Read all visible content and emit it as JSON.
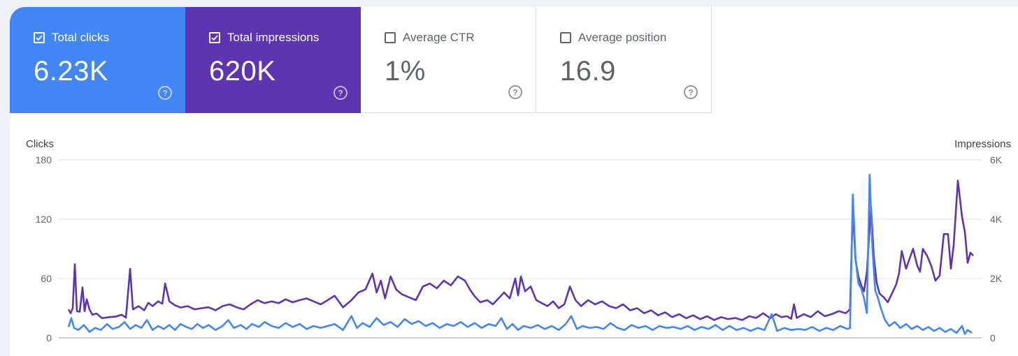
{
  "metrics": [
    {
      "label": "Total clicks",
      "value": "6.23K",
      "checked": true
    },
    {
      "label": "Total impressions",
      "value": "620K",
      "checked": true
    },
    {
      "label": "Average CTR",
      "value": "1%",
      "checked": false
    },
    {
      "label": "Average position",
      "value": "16.9",
      "checked": false
    }
  ],
  "colors": {
    "clicks": "#4285f4",
    "impressions": "#5e35b1",
    "grid": "#e0e0e0",
    "axis_text": "#5f6368"
  },
  "chart_data": {
    "type": "line",
    "title": "",
    "y_left": {
      "label": "Clicks",
      "ticks": [
        "180",
        "120",
        "60",
        "0"
      ],
      "range": [
        0,
        180
      ]
    },
    "y_right": {
      "label": "Impressions",
      "ticks": [
        "6K",
        "4K",
        "2K",
        "0"
      ],
      "range": [
        0,
        6000
      ]
    },
    "series": [
      {
        "name": "Clicks",
        "axis": "left",
        "points": [
          [
            0,
            11
          ],
          [
            4,
            20
          ],
          [
            8,
            10
          ],
          [
            14,
            8
          ],
          [
            22,
            13
          ],
          [
            30,
            6
          ],
          [
            38,
            10
          ],
          [
            46,
            8
          ],
          [
            55,
            14
          ],
          [
            63,
            9
          ],
          [
            72,
            11
          ],
          [
            80,
            16
          ],
          [
            88,
            9
          ],
          [
            96,
            13
          ],
          [
            104,
            10
          ],
          [
            112,
            18
          ],
          [
            120,
            8
          ],
          [
            128,
            12
          ],
          [
            136,
            9
          ],
          [
            144,
            13
          ],
          [
            152,
            8
          ],
          [
            160,
            14
          ],
          [
            168,
            11
          ],
          [
            176,
            9
          ],
          [
            184,
            14
          ],
          [
            192,
            10
          ],
          [
            200,
            13
          ],
          [
            210,
            8
          ],
          [
            220,
            12
          ],
          [
            228,
            18
          ],
          [
            236,
            10
          ],
          [
            246,
            13
          ],
          [
            254,
            9
          ],
          [
            262,
            14
          ],
          [
            272,
            11
          ],
          [
            280,
            16
          ],
          [
            290,
            12
          ],
          [
            300,
            10
          ],
          [
            310,
            15
          ],
          [
            320,
            11
          ],
          [
            330,
            14
          ],
          [
            340,
            9
          ],
          [
            350,
            12
          ],
          [
            360,
            10
          ],
          [
            370,
            12
          ],
          [
            380,
            14
          ],
          [
            392,
            8
          ],
          [
            404,
            22
          ],
          [
            412,
            10
          ],
          [
            420,
            15
          ],
          [
            430,
            11
          ],
          [
            440,
            20
          ],
          [
            450,
            13
          ],
          [
            460,
            16
          ],
          [
            470,
            11
          ],
          [
            480,
            19
          ],
          [
            490,
            14
          ],
          [
            500,
            17
          ],
          [
            510,
            12
          ],
          [
            520,
            15
          ],
          [
            530,
            10
          ],
          [
            540,
            14
          ],
          [
            550,
            12
          ],
          [
            560,
            16
          ],
          [
            570,
            11
          ],
          [
            580,
            15
          ],
          [
            590,
            10
          ],
          [
            600,
            14
          ],
          [
            610,
            12
          ],
          [
            618,
            20
          ],
          [
            626,
            9
          ],
          [
            634,
            14
          ],
          [
            642,
            8
          ],
          [
            650,
            12
          ],
          [
            660,
            10
          ],
          [
            670,
            13
          ],
          [
            680,
            9
          ],
          [
            690,
            12
          ],
          [
            700,
            8
          ],
          [
            710,
            14
          ],
          [
            718,
            22
          ],
          [
            726,
            9
          ],
          [
            734,
            12
          ],
          [
            744,
            10
          ],
          [
            754,
            11
          ],
          [
            764,
            9
          ],
          [
            774,
            15
          ],
          [
            784,
            10
          ],
          [
            794,
            8
          ],
          [
            804,
            13
          ],
          [
            814,
            10
          ],
          [
            824,
            12
          ],
          [
            834,
            8
          ],
          [
            844,
            12
          ],
          [
            854,
            10
          ],
          [
            864,
            11
          ],
          [
            874,
            9
          ],
          [
            884,
            12
          ],
          [
            894,
            8
          ],
          [
            904,
            11
          ],
          [
            914,
            9
          ],
          [
            924,
            13
          ],
          [
            934,
            8
          ],
          [
            944,
            12
          ],
          [
            954,
            8
          ],
          [
            964,
            10
          ],
          [
            974,
            7
          ],
          [
            984,
            10
          ],
          [
            994,
            8
          ],
          [
            1004,
            24
          ],
          [
            1012,
            7
          ],
          [
            1022,
            10
          ],
          [
            1032,
            8
          ],
          [
            1042,
            9
          ],
          [
            1052,
            8
          ],
          [
            1062,
            11
          ],
          [
            1072,
            7
          ],
          [
            1082,
            10
          ],
          [
            1092,
            8
          ],
          [
            1102,
            12
          ],
          [
            1112,
            9
          ],
          [
            1116,
            10
          ],
          [
            1120,
            145
          ],
          [
            1124,
            80
          ],
          [
            1128,
            55
          ],
          [
            1132,
            50
          ],
          [
            1136,
            40
          ],
          [
            1140,
            25
          ],
          [
            1144,
            165
          ],
          [
            1148,
            90
          ],
          [
            1152,
            48
          ],
          [
            1156,
            40
          ],
          [
            1160,
            30
          ],
          [
            1166,
            18
          ],
          [
            1172,
            12
          ],
          [
            1180,
            16
          ],
          [
            1188,
            10
          ],
          [
            1196,
            14
          ],
          [
            1204,
            9
          ],
          [
            1212,
            12
          ],
          [
            1220,
            8
          ],
          [
            1228,
            11
          ],
          [
            1236,
            7
          ],
          [
            1244,
            10
          ],
          [
            1252,
            6
          ],
          [
            1260,
            9
          ],
          [
            1268,
            5
          ],
          [
            1276,
            12
          ],
          [
            1280,
            4
          ],
          [
            1284,
            8
          ],
          [
            1290,
            5
          ]
        ]
      },
      {
        "name": "Impressions",
        "axis": "right",
        "points": [
          [
            0,
            960
          ],
          [
            3,
            830
          ],
          [
            6,
            1000
          ],
          [
            9,
            2480
          ],
          [
            12,
            900
          ],
          [
            16,
            880
          ],
          [
            20,
            1700
          ],
          [
            23,
            900
          ],
          [
            26,
            1300
          ],
          [
            30,
            960
          ],
          [
            34,
            780
          ],
          [
            40,
            820
          ],
          [
            48,
            660
          ],
          [
            58,
            700
          ],
          [
            68,
            720
          ],
          [
            76,
            780
          ],
          [
            82,
            680
          ],
          [
            88,
            2330
          ],
          [
            92,
            960
          ],
          [
            100,
            1070
          ],
          [
            108,
            930
          ],
          [
            114,
            1180
          ],
          [
            120,
            1070
          ],
          [
            128,
            1230
          ],
          [
            134,
            1150
          ],
          [
            138,
            1830
          ],
          [
            144,
            1230
          ],
          [
            152,
            1100
          ],
          [
            160,
            1020
          ],
          [
            170,
            1070
          ],
          [
            180,
            960
          ],
          [
            190,
            1000
          ],
          [
            200,
            1030
          ],
          [
            210,
            930
          ],
          [
            220,
            1070
          ],
          [
            230,
            1130
          ],
          [
            240,
            1030
          ],
          [
            250,
            960
          ],
          [
            260,
            1130
          ],
          [
            270,
            1270
          ],
          [
            280,
            1170
          ],
          [
            290,
            1230
          ],
          [
            300,
            1170
          ],
          [
            310,
            1300
          ],
          [
            320,
            1200
          ],
          [
            330,
            1270
          ],
          [
            340,
            1330
          ],
          [
            350,
            1230
          ],
          [
            360,
            1130
          ],
          [
            370,
            1270
          ],
          [
            380,
            1420
          ],
          [
            392,
            1030
          ],
          [
            404,
            1270
          ],
          [
            414,
            1530
          ],
          [
            424,
            1630
          ],
          [
            434,
            2170
          ],
          [
            440,
            1530
          ],
          [
            446,
            1930
          ],
          [
            452,
            1330
          ],
          [
            460,
            2070
          ],
          [
            468,
            1630
          ],
          [
            476,
            1470
          ],
          [
            486,
            1370
          ],
          [
            496,
            1270
          ],
          [
            506,
            1730
          ],
          [
            516,
            1830
          ],
          [
            526,
            1670
          ],
          [
            536,
            1930
          ],
          [
            546,
            1770
          ],
          [
            556,
            2070
          ],
          [
            566,
            1930
          ],
          [
            574,
            1600
          ],
          [
            580,
            1400
          ],
          [
            588,
            1200
          ],
          [
            598,
            1270
          ],
          [
            606,
            1130
          ],
          [
            614,
            1330
          ],
          [
            622,
            1530
          ],
          [
            630,
            1330
          ],
          [
            638,
            2000
          ],
          [
            642,
            1430
          ],
          [
            646,
            2070
          ],
          [
            652,
            1570
          ],
          [
            660,
            1730
          ],
          [
            668,
            1270
          ],
          [
            676,
            1170
          ],
          [
            684,
            1070
          ],
          [
            692,
            1230
          ],
          [
            700,
            1000
          ],
          [
            708,
            1130
          ],
          [
            716,
            1730
          ],
          [
            724,
            1270
          ],
          [
            732,
            1070
          ],
          [
            742,
            1270
          ],
          [
            752,
            1130
          ],
          [
            762,
            1230
          ],
          [
            772,
            1070
          ],
          [
            782,
            1000
          ],
          [
            792,
            1130
          ],
          [
            802,
            930
          ],
          [
            812,
            1000
          ],
          [
            822,
            830
          ],
          [
            832,
            930
          ],
          [
            842,
            760
          ],
          [
            852,
            860
          ],
          [
            862,
            700
          ],
          [
            872,
            800
          ],
          [
            882,
            660
          ],
          [
            892,
            760
          ],
          [
            902,
            630
          ],
          [
            912,
            730
          ],
          [
            922,
            600
          ],
          [
            932,
            700
          ],
          [
            942,
            630
          ],
          [
            952,
            670
          ],
          [
            962,
            600
          ],
          [
            972,
            730
          ],
          [
            982,
            670
          ],
          [
            992,
            830
          ],
          [
            1002,
            660
          ],
          [
            1010,
            800
          ],
          [
            1018,
            700
          ],
          [
            1026,
            730
          ],
          [
            1032,
            640
          ],
          [
            1036,
            1130
          ],
          [
            1040,
            670
          ],
          [
            1050,
            800
          ],
          [
            1060,
            700
          ],
          [
            1070,
            900
          ],
          [
            1080,
            730
          ],
          [
            1090,
            800
          ],
          [
            1100,
            900
          ],
          [
            1110,
            830
          ],
          [
            1116,
            960
          ],
          [
            1120,
            4330
          ],
          [
            1124,
            2600
          ],
          [
            1128,
            2070
          ],
          [
            1132,
            1770
          ],
          [
            1136,
            1570
          ],
          [
            1140,
            2230
          ],
          [
            1146,
            4400
          ],
          [
            1150,
            2730
          ],
          [
            1154,
            1870
          ],
          [
            1158,
            1500
          ],
          [
            1164,
            1370
          ],
          [
            1170,
            1200
          ],
          [
            1176,
            1500
          ],
          [
            1182,
            1800
          ],
          [
            1186,
            2170
          ],
          [
            1190,
            2930
          ],
          [
            1196,
            2330
          ],
          [
            1200,
            2600
          ],
          [
            1206,
            3000
          ],
          [
            1212,
            2430
          ],
          [
            1216,
            2230
          ],
          [
            1220,
            3000
          ],
          [
            1226,
            2770
          ],
          [
            1232,
            2430
          ],
          [
            1238,
            1930
          ],
          [
            1244,
            2100
          ],
          [
            1250,
            3500
          ],
          [
            1256,
            3500
          ],
          [
            1260,
            2330
          ],
          [
            1264,
            3130
          ],
          [
            1270,
            5300
          ],
          [
            1276,
            4070
          ],
          [
            1280,
            3570
          ],
          [
            1284,
            2530
          ],
          [
            1288,
            2870
          ],
          [
            1292,
            2770
          ]
        ]
      }
    ]
  }
}
